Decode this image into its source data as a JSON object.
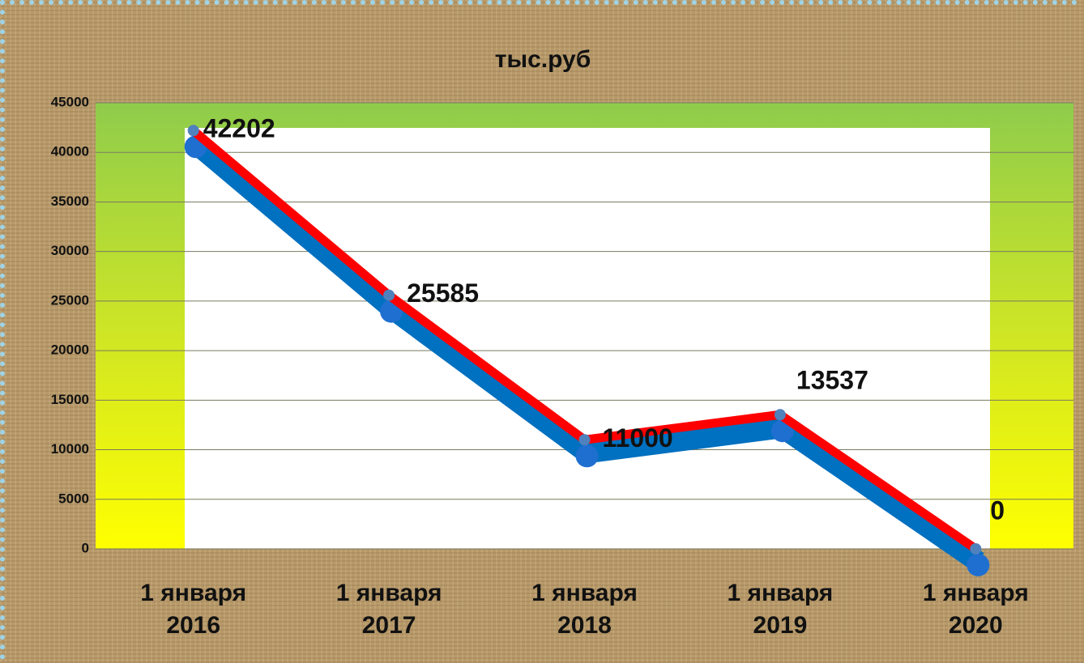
{
  "chart_data": {
    "type": "line",
    "title": "тыс.руб",
    "categories": [
      "1 января 2016",
      "1 января 2017",
      "1 января 2018",
      "1 января 2019",
      "1 января 2020"
    ],
    "series": [
      {
        "name": "тыс.руб",
        "color": "#ff0000",
        "values": [
          42202,
          25585,
          11000,
          13537,
          0
        ]
      }
    ],
    "ylim": [
      0,
      45000
    ],
    "yticks": [
      0,
      5000,
      10000,
      15000,
      20000,
      25000,
      30000,
      35000,
      40000,
      45000
    ],
    "grid": true
  }
}
